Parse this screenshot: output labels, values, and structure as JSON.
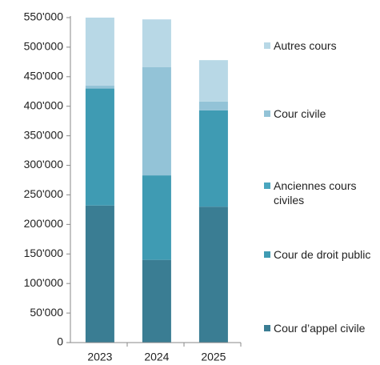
{
  "chart_data": {
    "type": "stacked_bar",
    "categories": [
      "2023",
      "2024",
      "2025"
    ],
    "series": [
      {
        "name": "Cour d’appel civile",
        "color": "#3a7d93",
        "values": [
          232000,
          140000,
          230000
        ]
      },
      {
        "name": "Cour de droit public",
        "color": "#3f9bb3",
        "values": [
          198000,
          143000,
          163000
        ]
      },
      {
        "name": "Anciennes cours civiles",
        "color": "#4aa6bf",
        "values": [
          0,
          0,
          0
        ]
      },
      {
        "name": "Cour civile",
        "color": "#93c3d7",
        "values": [
          5000,
          183000,
          15000
        ]
      },
      {
        "name": "Autres cours",
        "color": "#b8d8e6",
        "values": [
          115000,
          81000,
          70000
        ]
      }
    ],
    "ylim": [
      0,
      550000
    ],
    "yticks": [
      0,
      {
        "value": 50000,
        "label": "50'000"
      },
      {
        "value": 100000,
        "label": "100'000"
      },
      {
        "value": 150000,
        "label": "150'000"
      },
      {
        "value": 200000,
        "label": "200'000"
      },
      {
        "value": 250000,
        "label": "250'000"
      },
      {
        "value": 300000,
        "label": "300'000"
      },
      {
        "value": 350000,
        "label": "350'000"
      },
      {
        "value": 400000,
        "label": "400'000"
      },
      {
        "value": 450000,
        "label": "450'000"
      },
      {
        "value": 500000,
        "label": "500'000"
      },
      {
        "value": 550000,
        "label": "550'000"
      }
    ],
    "legend": "right"
  }
}
